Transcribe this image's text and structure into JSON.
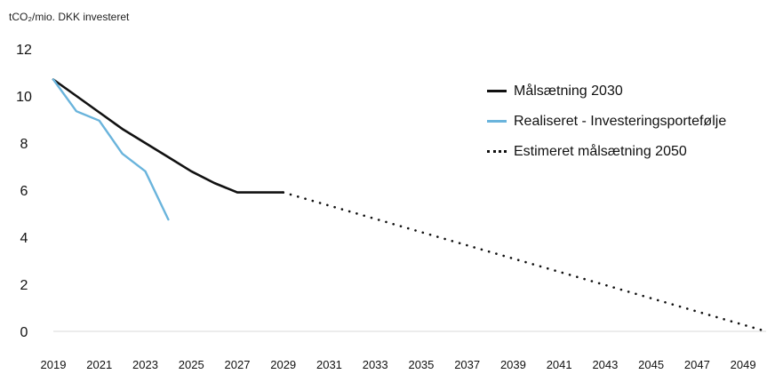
{
  "chart_data": {
    "type": "line",
    "unit_label": "tCO₂/mio. DKK investeret",
    "yticks": [
      "0",
      "2",
      "4",
      "6",
      "8",
      "10",
      "12"
    ],
    "ylim": [
      0,
      12
    ],
    "xlim": [
      2019,
      2050
    ],
    "xticks": [
      "2019",
      "2021",
      "2023",
      "2025",
      "2027",
      "2029",
      "2031",
      "2033",
      "2035",
      "2037",
      "2039",
      "2041",
      "2043",
      "2045",
      "2047",
      "2049"
    ],
    "series": [
      {
        "name": "Målsætning 2030",
        "color": "#111111",
        "style": "solid",
        "x": [
          2019,
          2020,
          2021,
          2022,
          2023,
          2024,
          2025,
          2026,
          2027,
          2028,
          2029
        ],
        "y": [
          10.7,
          10.0,
          9.3,
          8.6,
          8.0,
          7.4,
          6.8,
          6.3,
          5.9,
          5.9,
          5.9
        ]
      },
      {
        "name": "Realiseret - Investeringsportefølje",
        "color": "#6ab4dc",
        "style": "solid",
        "x": [
          2019,
          2020,
          2021,
          2022,
          2023,
          2024
        ],
        "y": [
          10.7,
          9.35,
          8.95,
          7.55,
          6.8,
          4.75
        ]
      },
      {
        "name": "Estimeret målsætning 2050",
        "color": "#111111",
        "style": "dotted",
        "x": [
          2029,
          2050
        ],
        "y": [
          5.9,
          0
        ]
      }
    ],
    "grid": false,
    "legend_position": "right"
  }
}
